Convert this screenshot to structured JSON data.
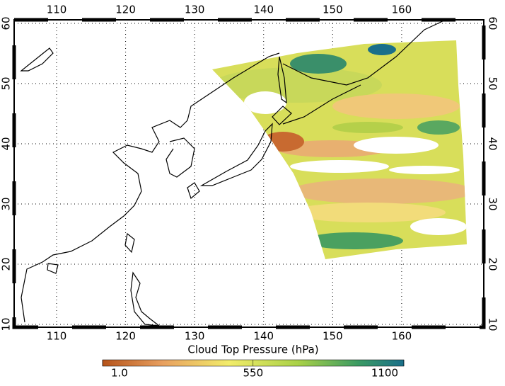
{
  "map": {
    "xlim": [
      103.85,
      171.9
    ],
    "ylim": [
      9.53,
      60.59
    ],
    "xticks": [
      110,
      120,
      130,
      140,
      150,
      160
    ],
    "yticks": [
      10,
      20,
      30,
      40,
      50,
      60
    ],
    "grid": true,
    "colorbar": {
      "title": "Cloud Top Pressure (hPa)",
      "range": [
        1,
        1100
      ],
      "ticks": [
        {
          "value": 1,
          "label": "1.0"
        },
        550,
        1100
      ]
    }
  }
}
